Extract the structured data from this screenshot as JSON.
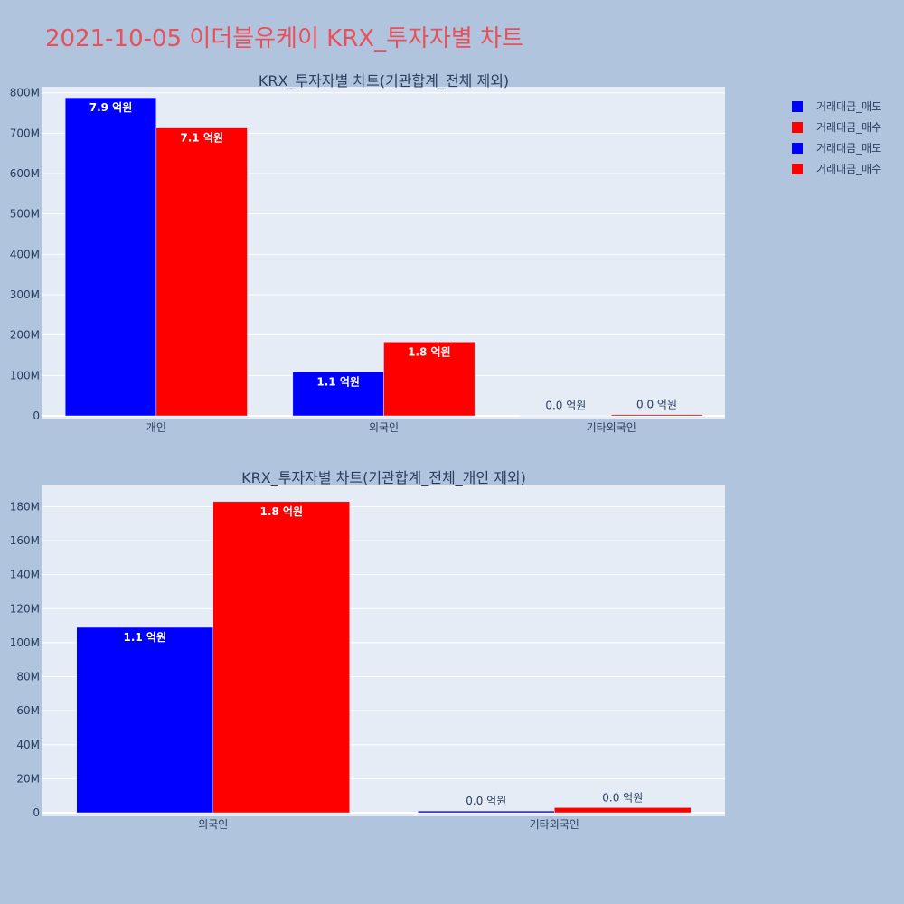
{
  "title": "2021-10-05 이더블유케이 KRX_투자자별 차트",
  "legend": [
    {
      "label": "거래대금_매도",
      "color": "#0000ff"
    },
    {
      "label": "거래대금_매수",
      "color": "#ff0000"
    },
    {
      "label": "거래대금_매도",
      "color": "#0000ff"
    },
    {
      "label": "거래대금_매수",
      "color": "#ff0000"
    }
  ],
  "chart_data": [
    {
      "type": "bar",
      "title": "KRX_투자자별 차트(기관합계_전체 제외)",
      "categories": [
        "개인",
        "외국인",
        "기타외국인"
      ],
      "series": [
        {
          "name": "거래대금_매도",
          "color": "#0000ff",
          "values": [
            788000000,
            109000000,
            1000000
          ],
          "labels": [
            "7.9 억원",
            "1.1 억원",
            "0.0 억원"
          ]
        },
        {
          "name": "거래대금_매수",
          "color": "#ff0000",
          "values": [
            713000000,
            183000000,
            3000000
          ],
          "labels": [
            "7.1 억원",
            "1.8 억원",
            "0.0 억원"
          ]
        }
      ],
      "yticks": [
        0,
        100000000,
        200000000,
        300000000,
        400000000,
        500000000,
        600000000,
        700000000,
        800000000
      ],
      "ytick_labels": [
        "0",
        "100M",
        "200M",
        "300M",
        "400M",
        "500M",
        "600M",
        "700M",
        "800M"
      ],
      "ylim": [
        0,
        815000000
      ],
      "grid": true
    },
    {
      "type": "bar",
      "title": "KRX_투자자별 차트(기관합계_전체_개인 제외)",
      "categories": [
        "외국인",
        "기타외국인"
      ],
      "series": [
        {
          "name": "거래대금_매도",
          "color": "#0000ff",
          "values": [
            109000000,
            1000000
          ],
          "labels": [
            "1.1 억원",
            "0.0 억원"
          ]
        },
        {
          "name": "거래대금_매수",
          "color": "#ff0000",
          "values": [
            183000000,
            3000000
          ],
          "labels": [
            "1.8 억원",
            "0.0 억원"
          ]
        }
      ],
      "yticks": [
        0,
        20000000,
        40000000,
        60000000,
        80000000,
        100000000,
        120000000,
        140000000,
        160000000,
        180000000
      ],
      "ytick_labels": [
        "0",
        "20M",
        "40M",
        "60M",
        "80M",
        "100M",
        "120M",
        "140M",
        "160M",
        "180M"
      ],
      "ylim": [
        0,
        193000000
      ],
      "grid": true
    }
  ]
}
